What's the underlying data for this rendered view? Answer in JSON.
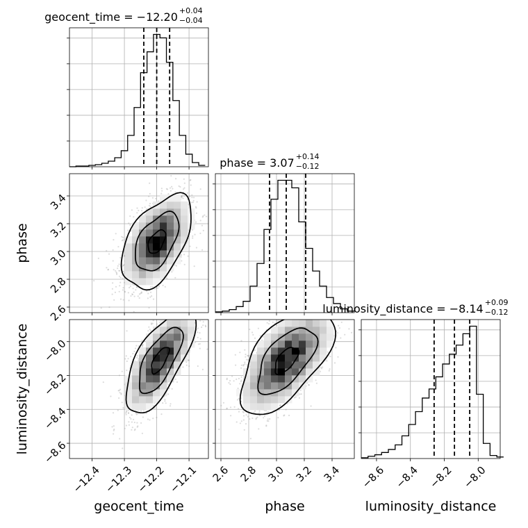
{
  "chart_data": {
    "type": "corner",
    "parameters": [
      "geocent_time",
      "phase",
      "luminosity_distance"
    ],
    "grid": true,
    "marginals": [
      {
        "name": "geocent_time",
        "title_text": "geocent_time = −12.20",
        "title_sup": "+0.04",
        "title_sub": "−0.04",
        "median": -12.2,
        "q_low": -12.24,
        "q_high": -12.16,
        "range": [
          -12.47,
          -12.04
        ],
        "hist_edges": [
          -12.47,
          -12.45,
          -12.43,
          -12.41,
          -12.39,
          -12.37,
          -12.35,
          -12.33,
          -12.31,
          -12.29,
          -12.27,
          -12.25,
          -12.23,
          -12.21,
          -12.19,
          -12.17,
          -12.15,
          -12.13,
          -12.11,
          -12.09,
          -12.07,
          -12.05
        ],
        "hist_counts": [
          0,
          1,
          1,
          2,
          3,
          5,
          8,
          13,
          23,
          45,
          85,
          135,
          165,
          190,
          185,
          150,
          95,
          45,
          18,
          6,
          2
        ],
        "ticks": [
          -12.4,
          -12.3,
          -12.2,
          -12.1
        ],
        "tick_labels": [
          "−12.4",
          "−12.3",
          "−12.2",
          "−12.1"
        ]
      },
      {
        "name": "phase",
        "title_text": "phase = 3.07",
        "title_sup": "+0.14",
        "title_sub": "−0.12",
        "median": 3.07,
        "q_low": 2.95,
        "q_high": 3.21,
        "range": [
          2.56,
          3.56
        ],
        "hist_edges": [
          2.56,
          2.61,
          2.66,
          2.71,
          2.76,
          2.81,
          2.86,
          2.91,
          2.96,
          3.01,
          3.06,
          3.11,
          3.16,
          3.21,
          3.26,
          3.31,
          3.36,
          3.41,
          3.46,
          3.51,
          3.56
        ],
        "hist_counts": [
          1,
          2,
          4,
          8,
          15,
          35,
          65,
          110,
          150,
          175,
          175,
          165,
          120,
          85,
          55,
          35,
          20,
          12,
          5,
          2
        ],
        "ticks": [
          2.6,
          2.8,
          3.0,
          3.2,
          3.4
        ],
        "tick_labels": [
          "2.6",
          "2.8",
          "3.0",
          "3.2",
          "3.4"
        ]
      },
      {
        "name": "luminosity_distance",
        "title_text": "luminosity_distance = −8.14",
        "title_sup": "+0.09",
        "title_sub": "−0.12",
        "median": -8.14,
        "q_low": -8.26,
        "q_high": -8.05,
        "range": [
          -8.69,
          -7.87
        ],
        "hist_edges": [
          -8.69,
          -8.65,
          -8.61,
          -8.57,
          -8.53,
          -8.49,
          -8.45,
          -8.41,
          -8.37,
          -8.33,
          -8.29,
          -8.25,
          -8.21,
          -8.17,
          -8.13,
          -8.09,
          -8.05,
          -8.01,
          -7.97,
          -7.93,
          -7.89,
          -7.85
        ],
        "hist_counts": [
          1,
          3,
          5,
          8,
          12,
          18,
          30,
          45,
          62,
          80,
          92,
          108,
          125,
          138,
          150,
          165,
          175,
          85,
          20,
          4,
          2
        ],
        "ticks": [
          -8.6,
          -8.4,
          -8.2,
          -8.0
        ],
        "tick_labels": [
          "−8.6",
          "−8.4",
          "−8.2",
          "−8.0"
        ]
      }
    ],
    "pairs": [
      {
        "x": "geocent_time",
        "y": "phase",
        "mean": [
          -12.2,
          3.07
        ],
        "std": [
          0.045,
          0.14
        ],
        "corr": 0.5,
        "xlim": [
          -12.47,
          -12.04
        ],
        "ylim": [
          2.56,
          3.56
        ],
        "yticks": [
          2.6,
          2.8,
          3.0,
          3.2,
          3.4
        ],
        "ytick_labels": [
          "2.6",
          "2.8",
          "3.0",
          "3.2",
          "3.4"
        ]
      },
      {
        "x": "geocent_time",
        "y": "luminosity_distance",
        "mean": [
          -12.19,
          -8.11
        ],
        "std": [
          0.045,
          0.13
        ],
        "corr": 0.7,
        "xlim": [
          -12.47,
          -12.04
        ],
        "ylim": [
          -8.69,
          -7.87
        ],
        "yticks": [
          -8.6,
          -8.4,
          -8.2,
          -8.0
        ],
        "ytick_labels": [
          "−8.6",
          "−8.4",
          "−8.2",
          "−8.0"
        ]
      },
      {
        "x": "phase",
        "y": "luminosity_distance",
        "mean": [
          3.07,
          -8.11
        ],
        "std": [
          0.14,
          0.13
        ],
        "corr": 0.6,
        "xlim": [
          2.56,
          3.56
        ],
        "ylim": [
          -8.69,
          -7.87
        ]
      }
    ],
    "axis_labels": {
      "x": [
        "geocent_time",
        "phase",
        "luminosity_distance"
      ],
      "y": [
        "phase",
        "luminosity_distance"
      ]
    }
  }
}
